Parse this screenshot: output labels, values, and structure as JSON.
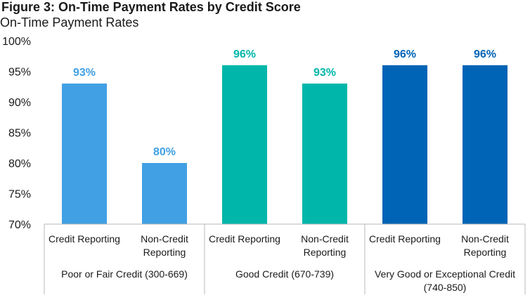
{
  "chart_data": {
    "type": "bar",
    "title": "Figure 3: On-Time Payment Rates by Credit Score",
    "ylabel": "On-Time Payment Rates",
    "ylim": [
      70,
      100
    ],
    "yticks": [
      "70%",
      "75%",
      "80%",
      "85%",
      "90%",
      "95%",
      "100%"
    ],
    "ytick_values": [
      70,
      75,
      80,
      85,
      90,
      95,
      100
    ],
    "grid": false,
    "groups": [
      {
        "label": "Poor or Fair Credit (300-669)",
        "color": "#41A0E4",
        "bars": [
          {
            "category": "Credit Reporting",
            "value": 93,
            "label": "93%"
          },
          {
            "category": "Non-Credit Reporting",
            "value": 80,
            "label": "80%"
          }
        ]
      },
      {
        "label": "Good Credit (670-739)",
        "color": "#00B6AA",
        "bars": [
          {
            "category": "Credit Reporting",
            "value": 96,
            "label": "96%"
          },
          {
            "category": "Non-Credit Reporting",
            "value": 93,
            "label": "93%"
          }
        ]
      },
      {
        "label": "Very Good or Exceptional Credit (740-850)",
        "color": "#0064B6",
        "bars": [
          {
            "category": "Credit Reporting",
            "value": 96,
            "label": "96%"
          },
          {
            "category": "Non-Credit Reporting",
            "value": 96,
            "label": "96%"
          }
        ]
      }
    ]
  }
}
